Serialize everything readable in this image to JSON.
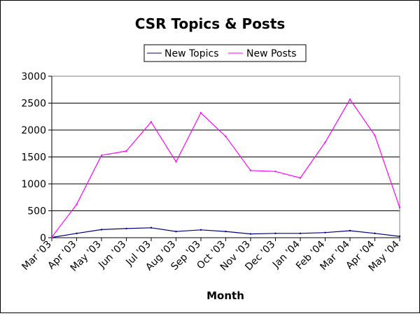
{
  "chart_data": {
    "type": "line",
    "title": "CSR Topics & Posts",
    "xlabel": "Month",
    "ylabel": "",
    "ylim": [
      0,
      3000
    ],
    "yticks": [
      0,
      500,
      1000,
      1500,
      2000,
      2500,
      3000
    ],
    "grid": true,
    "legend_position": "top",
    "categories": [
      "Mar '03",
      "Apr '03",
      "May '03",
      "Jun '03",
      "Jul '03",
      "Aug '03",
      "Sep '03",
      "Oct '03",
      "Nov '03",
      "Dec '03",
      "Jan '04",
      "Feb '04",
      "Mar '04",
      "Apr '04",
      "May '04"
    ],
    "series": [
      {
        "name": "New Topics",
        "color": "#000080",
        "values": [
          5,
          80,
          150,
          170,
          185,
          115,
          145,
          115,
          70,
          80,
          80,
          95,
          130,
          80,
          25
        ]
      },
      {
        "name": "New Posts",
        "color": "#ff00ff",
        "values": [
          10,
          620,
          1530,
          1610,
          2150,
          1410,
          2320,
          1880,
          1250,
          1230,
          1110,
          1770,
          2570,
          1900,
          560
        ]
      }
    ]
  }
}
